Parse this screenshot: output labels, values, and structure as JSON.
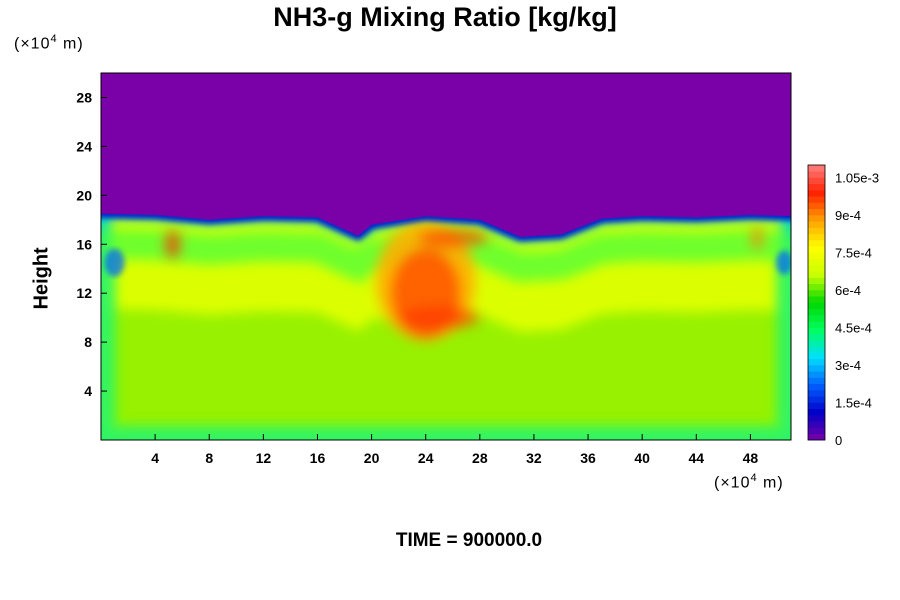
{
  "chart_data": {
    "type": "heatmap",
    "title": "NH3-g Mixing Ratio [kg/kg]",
    "ylabel": "Height",
    "y_unit": {
      "prefix": "(×10",
      "exp": "4",
      "suffix": " m)"
    },
    "x_unit": {
      "prefix": "(×10",
      "exp": "4",
      "suffix": " m)"
    },
    "xlim": [
      0,
      51
    ],
    "ylim": [
      0,
      30
    ],
    "xticks": [
      "4",
      "8",
      "12",
      "16",
      "20",
      "24",
      "28",
      "32",
      "36",
      "40",
      "44",
      "48"
    ],
    "yticks": [
      "4",
      "8",
      "12",
      "16",
      "20",
      "24",
      "28"
    ],
    "colorbar": {
      "min": 0,
      "max": 0.0011,
      "labels": [
        "0",
        "1.5e-4",
        "3e-4",
        "4.5e-4",
        "6e-4",
        "7.5e-4",
        "9e-4",
        "1.05e-3"
      ],
      "stops": [
        "#7a00a8",
        "#0000c8",
        "#0060ff",
        "#00e0ff",
        "#00ff60",
        "#00d800",
        "#c8ff00",
        "#ffff00",
        "#ffa000",
        "#ff2000",
        "#ff8080"
      ]
    },
    "field_description": {
      "top_value": 0,
      "bottom_value": 0.00078,
      "boundary_height_profile": [
        {
          "x": 0,
          "y": 18.5
        },
        {
          "x": 4,
          "y": 18.4
        },
        {
          "x": 8,
          "y": 18.0
        },
        {
          "x": 12,
          "y": 18.3
        },
        {
          "x": 16,
          "y": 18.2
        },
        {
          "x": 19,
          "y": 16.7
        },
        {
          "x": 20,
          "y": 17.6
        },
        {
          "x": 24,
          "y": 18.3
        },
        {
          "x": 28,
          "y": 18.0
        },
        {
          "x": 31,
          "y": 16.6
        },
        {
          "x": 34,
          "y": 16.8
        },
        {
          "x": 37,
          "y": 18.1
        },
        {
          "x": 40,
          "y": 18.3
        },
        {
          "x": 44,
          "y": 18.2
        },
        {
          "x": 48,
          "y": 18.4
        },
        {
          "x": 51,
          "y": 18.3
        }
      ]
    }
  },
  "footer": {
    "time": "TIME = 900000.0"
  }
}
